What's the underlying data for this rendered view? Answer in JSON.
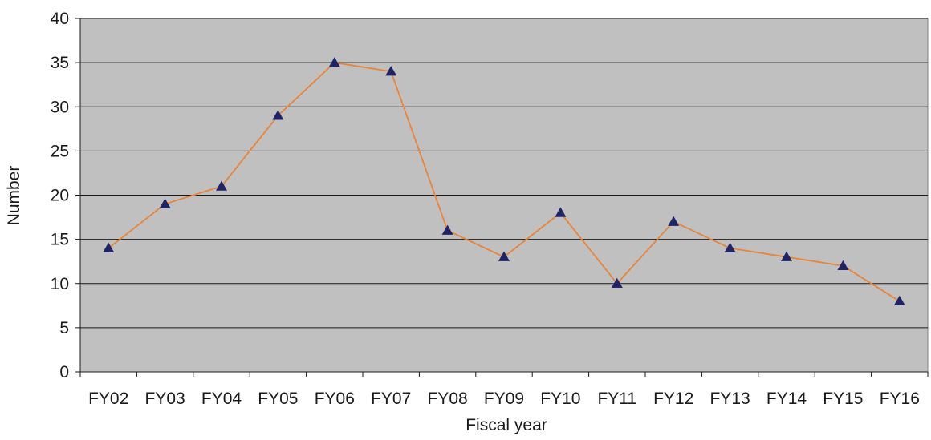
{
  "chart_data": {
    "type": "line",
    "title": "",
    "xlabel": "Fiscal year",
    "ylabel": "Number",
    "categories": [
      "FY02",
      "FY03",
      "FY04",
      "FY05",
      "FY06",
      "FY07",
      "FY08",
      "FY09",
      "FY10",
      "FY11",
      "FY12",
      "FY13",
      "FY14",
      "FY15",
      "FY16"
    ],
    "series": [
      {
        "values": [
          14,
          19,
          21,
          29,
          35,
          34,
          16,
          13,
          18,
          10,
          17,
          14,
          13,
          12,
          8
        ],
        "line_color": "#e8843a",
        "marker": "triangle",
        "marker_color": "#1f2466"
      }
    ],
    "ylim": [
      0,
      40
    ],
    "yticks": [
      0,
      5,
      10,
      15,
      20,
      25,
      30,
      35,
      40
    ],
    "grid": true,
    "legend": "none",
    "plot_background": "#c0c0c0",
    "gridline_color": "#1a1a1a"
  }
}
